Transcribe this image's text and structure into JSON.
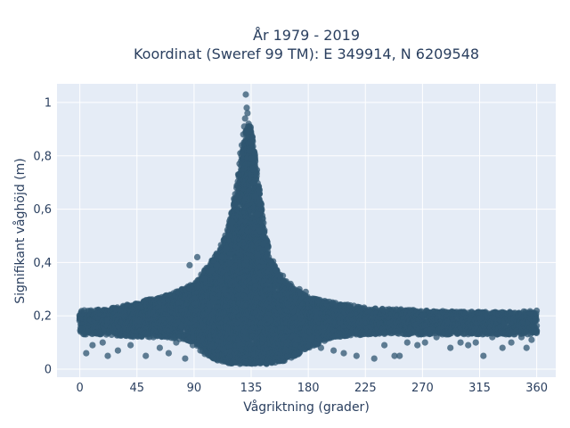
{
  "chart_data": {
    "type": "scatter",
    "title_line1": "År 1979 - 2019",
    "title_line2": "Koordinat (Sweref 99 TM): E 349914, N 6209548",
    "xlabel": "Vågriktning (grader)",
    "ylabel": "Signifikant våghöjd (m)",
    "xlim": [
      -18,
      375
    ],
    "ylim": [
      -0.03,
      1.07
    ],
    "x_ticks": [
      0,
      45,
      90,
      135,
      180,
      225,
      270,
      315,
      360
    ],
    "x_tick_labels": [
      "0",
      "45",
      "90",
      "135",
      "180",
      "225",
      "270",
      "315",
      "360"
    ],
    "y_ticks": [
      0,
      0.2,
      0.4,
      0.6,
      0.8,
      1
    ],
    "y_tick_labels": [
      "0",
      "0,2",
      "0,4",
      "0,6",
      "0,8",
      "1"
    ],
    "grid": true,
    "marker_color": "#2f5570",
    "background_color": "#e5ecf6",
    "envelope": {
      "x": [
        0,
        20,
        45,
        70,
        90,
        100,
        110,
        118,
        124,
        128,
        131,
        134,
        137,
        140,
        145,
        150,
        160,
        170,
        180,
        200,
        225,
        250,
        270,
        300,
        315,
        340,
        360
      ],
      "upper": [
        0.22,
        0.225,
        0.25,
        0.28,
        0.32,
        0.38,
        0.45,
        0.55,
        0.7,
        0.82,
        0.9,
        0.92,
        0.85,
        0.72,
        0.55,
        0.42,
        0.34,
        0.3,
        0.27,
        0.25,
        0.23,
        0.225,
        0.22,
        0.215,
        0.215,
        0.215,
        0.22
      ],
      "lower": [
        0.13,
        0.13,
        0.12,
        0.12,
        0.1,
        0.05,
        0.03,
        0.02,
        0.02,
        0.02,
        0.02,
        0.02,
        0.02,
        0.02,
        0.02,
        0.02,
        0.03,
        0.05,
        0.08,
        0.12,
        0.13,
        0.13,
        0.13,
        0.13,
        0.13,
        0.13,
        0.13
      ]
    },
    "series": [
      {
        "x": [
          130.8,
          131.5,
          132.1,
          130.2,
          133.0,
          129.5,
          131.9,
          128.8,
          132.8,
          134.0,
          127.6,
          133.6,
          126.4,
          135.0,
          125.9,
          136.1,
          124.8,
          137.2,
          123.5,
          138.5,
          121.9,
          140.0,
          119.8,
          142.0,
          117.5,
          144.5,
          115.0,
          147.5,
          112.0,
          151.0,
          108.0,
          155.0,
          103.5,
          160.0,
          98.0,
          166.0,
          92.5,
          173.0,
          86.5,
          178.0
        ],
        "y": [
          1.03,
          0.98,
          0.96,
          0.94,
          0.92,
          0.91,
          0.89,
          0.88,
          0.87,
          0.85,
          0.84,
          0.82,
          0.81,
          0.79,
          0.77,
          0.75,
          0.73,
          0.7,
          0.68,
          0.65,
          0.62,
          0.58,
          0.55,
          0.52,
          0.5,
          0.47,
          0.45,
          0.43,
          0.42,
          0.4,
          0.39,
          0.37,
          0.37,
          0.35,
          0.34,
          0.32,
          0.42,
          0.3,
          0.39,
          0.29
        ]
      },
      {
        "x": [
          5,
          10,
          18,
          22,
          30,
          40,
          52,
          58,
          63,
          70,
          76,
          83,
          89,
          95,
          190,
          200,
          208,
          218,
          232,
          240,
          248,
          252,
          258,
          266,
          272,
          281,
          292,
          300,
          306,
          312,
          318,
          325,
          333,
          340,
          348,
          352,
          356
        ],
        "y": [
          0.06,
          0.09,
          0.1,
          0.05,
          0.07,
          0.09,
          0.05,
          0.12,
          0.08,
          0.06,
          0.1,
          0.04,
          0.09,
          0.07,
          0.08,
          0.07,
          0.06,
          0.05,
          0.04,
          0.09,
          0.05,
          0.05,
          0.1,
          0.09,
          0.1,
          0.12,
          0.08,
          0.1,
          0.09,
          0.1,
          0.05,
          0.12,
          0.08,
          0.1,
          0.12,
          0.08,
          0.11
        ]
      }
    ]
  }
}
